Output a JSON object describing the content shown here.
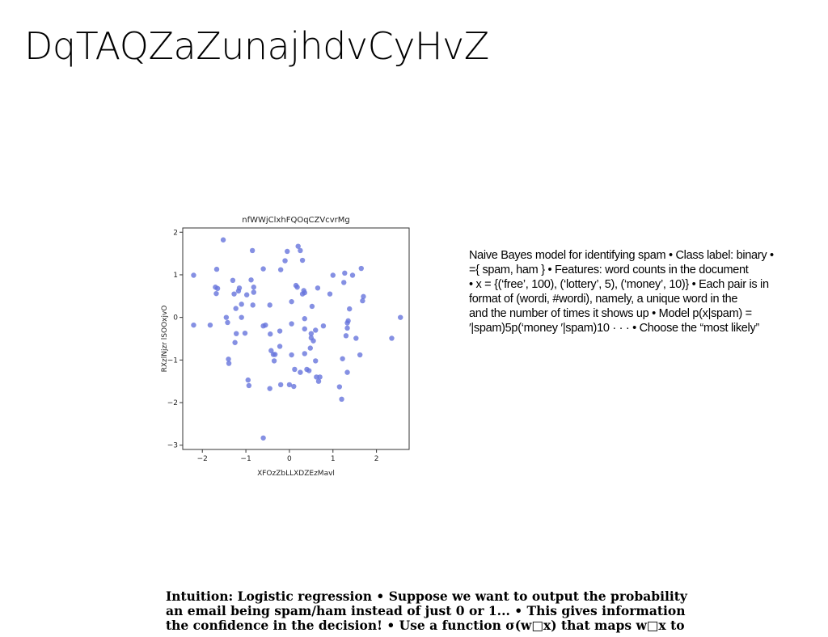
{
  "slide": {
    "title": "DqTAQZaZunajhdvCyHvZ",
    "right_text_lines": [
      "Naive Bayes model for identifying spam • Class label: binary •",
      "={ spam, ham } • Features: word counts in the document",
      "• x = {(‘free’, 100), (‘lottery’, 5), (‘money’, 10)} • Each pair is in",
      "format of (wordi, #wordi), namely, a unique word in the",
      "and the number of times it shows up • Model p(x|spam) =",
      "′|spam)5p(‘money ′|spam)10 · · · • Choose the “most likely”"
    ],
    "bottom_text_lines": [
      "Intuition: Logistic regression • Suppose we want to output the probability",
      "an email being spam/ham instead of just 0 or 1... • This gives information",
      "the confidence in the decision! • Use a function σ(w□x) that maps w□x to"
    ]
  },
  "chart_data": {
    "type": "scatter",
    "title": "nfWWjClxhFQOqCZVcvrMg",
    "xlabel": "XFOzZbLLXDZEzMavl",
    "ylabel": "RXzlNjzr lSOOxjvO",
    "xlim": [
      -2.45,
      2.75
    ],
    "ylim": [
      -3.1,
      2.1
    ],
    "xticks": [
      -2,
      -1,
      0,
      1,
      2
    ],
    "yticks": [
      2,
      1,
      0,
      -1,
      -2,
      -3
    ],
    "xtick_labels": [
      "−2",
      "−1",
      "0",
      "1",
      "2"
    ],
    "ytick_labels": [
      "2",
      "1",
      "0",
      "−1",
      "−2",
      "−3"
    ],
    "grid": false,
    "color": "#6674dc",
    "points": [
      [
        -1.52,
        1.82
      ],
      [
        -1.67,
        1.13
      ],
      [
        -2.2,
        0.99
      ],
      [
        -1.7,
        0.71
      ],
      [
        -1.65,
        0.68
      ],
      [
        -1.68,
        0.56
      ],
      [
        -1.82,
        -0.18
      ],
      [
        -2.2,
        -0.18
      ],
      [
        -1.45,
        0.0
      ],
      [
        -1.42,
        -0.12
      ],
      [
        -1.4,
        -0.98
      ],
      [
        -1.39,
        -1.08
      ],
      [
        -1.3,
        0.87
      ],
      [
        -1.27,
        0.55
      ],
      [
        -1.23,
        0.21
      ],
      [
        -1.17,
        0.62
      ],
      [
        -1.15,
        0.69
      ],
      [
        -1.22,
        -0.38
      ],
      [
        -1.25,
        -0.59
      ],
      [
        -1.1,
        0.31
      ],
      [
        -1.1,
        0.0
      ],
      [
        -1.02,
        -0.37
      ],
      [
        -0.98,
        0.53
      ],
      [
        -0.88,
        0.88
      ],
      [
        -0.82,
        0.71
      ],
      [
        -0.85,
        1.57
      ],
      [
        -0.82,
        0.59
      ],
      [
        -0.84,
        0.29
      ],
      [
        -0.95,
        -1.47
      ],
      [
        -0.93,
        -1.6
      ],
      [
        -0.6,
        -0.2
      ],
      [
        -0.6,
        1.14
      ],
      [
        -0.55,
        -0.18
      ],
      [
        -0.45,
        0.29
      ],
      [
        -0.44,
        -0.39
      ],
      [
        -0.42,
        -0.78
      ],
      [
        -0.37,
        -0.87
      ],
      [
        -0.33,
        -0.87
      ],
      [
        -0.35,
        -1.02
      ],
      [
        -0.45,
        -1.67
      ],
      [
        -0.6,
        -2.83
      ],
      [
        -0.22,
        -0.32
      ],
      [
        -0.22,
        -0.68
      ],
      [
        -0.2,
        1.12
      ],
      [
        -0.2,
        -1.58
      ],
      [
        -0.1,
        1.33
      ],
      [
        -0.05,
        1.55
      ],
      [
        0.05,
        0.37
      ],
      [
        0.05,
        -0.15
      ],
      [
        0.05,
        -0.88
      ],
      [
        0.0,
        -1.58
      ],
      [
        0.1,
        -1.62
      ],
      [
        0.12,
        -1.22
      ],
      [
        0.15,
        0.75
      ],
      [
        0.18,
        0.71
      ],
      [
        0.2,
        1.67
      ],
      [
        0.25,
        1.57
      ],
      [
        0.3,
        1.34
      ],
      [
        0.33,
        0.63
      ],
      [
        0.35,
        0.58
      ],
      [
        0.3,
        0.55
      ],
      [
        0.35,
        -0.03
      ],
      [
        0.35,
        -0.27
      ],
      [
        0.35,
        -0.85
      ],
      [
        0.25,
        -1.29
      ],
      [
        0.4,
        -1.22
      ],
      [
        0.45,
        -1.25
      ],
      [
        0.5,
        -0.38
      ],
      [
        0.5,
        -0.48
      ],
      [
        0.48,
        -0.72
      ],
      [
        0.52,
        0.26
      ],
      [
        0.55,
        -0.55
      ],
      [
        0.6,
        -0.3
      ],
      [
        0.6,
        -1.02
      ],
      [
        0.62,
        -1.4
      ],
      [
        0.65,
        0.69
      ],
      [
        0.67,
        -1.5
      ],
      [
        0.7,
        -1.4
      ],
      [
        0.78,
        -0.2
      ],
      [
        0.93,
        0.55
      ],
      [
        1.0,
        0.99
      ],
      [
        1.25,
        0.82
      ],
      [
        1.27,
        1.04
      ],
      [
        1.3,
        -0.43
      ],
      [
        1.33,
        -0.25
      ],
      [
        1.35,
        -0.08
      ],
      [
        1.38,
        0.2
      ],
      [
        1.33,
        -0.13
      ],
      [
        1.22,
        -0.97
      ],
      [
        1.33,
        -1.29
      ],
      [
        1.15,
        -1.63
      ],
      [
        1.2,
        -1.92
      ],
      [
        1.45,
        0.99
      ],
      [
        1.53,
        -0.49
      ],
      [
        1.62,
        -0.88
      ],
      [
        1.65,
        1.15
      ],
      [
        1.7,
        0.49
      ],
      [
        1.68,
        0.39
      ],
      [
        2.35,
        -0.49
      ],
      [
        2.55,
        0.0
      ]
    ]
  }
}
